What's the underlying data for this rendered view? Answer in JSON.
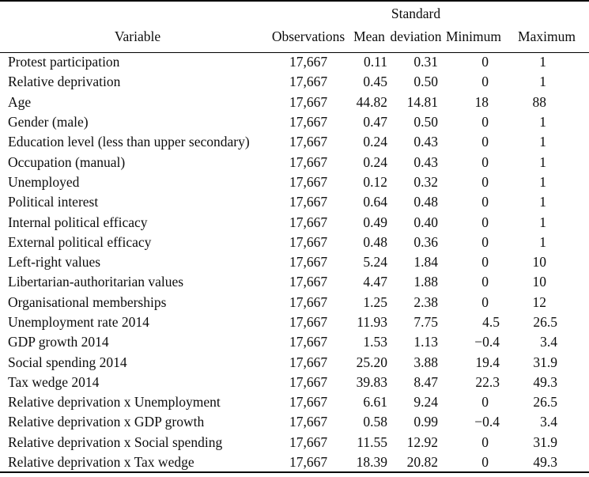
{
  "table": {
    "headers": {
      "variable": "Variable",
      "observations": "Observations",
      "mean": "Mean",
      "std_line1": "Standard",
      "std_line2": "deviation",
      "minimum": "Minimum",
      "maximum": "Maximum"
    },
    "rows": [
      {
        "variable": "Protest participation",
        "observations": "17,667",
        "mean": "0.11",
        "std": "0.31",
        "min": "0",
        "max": "1"
      },
      {
        "variable": "Relative deprivation",
        "observations": "17,667",
        "mean": "0.45",
        "std": "0.50",
        "min": "0",
        "max": "1"
      },
      {
        "variable": "Age",
        "observations": "17,667",
        "mean": "44.82",
        "std": "14.81",
        "min": "18",
        "max": "88"
      },
      {
        "variable": "Gender (male)",
        "observations": "17,667",
        "mean": "0.47",
        "std": "0.50",
        "min": "0",
        "max": "1"
      },
      {
        "variable": "Education level (less than upper secondary)",
        "observations": "17,667",
        "mean": "0.24",
        "std": "0.43",
        "min": "0",
        "max": "1"
      },
      {
        "variable": "Occupation (manual)",
        "observations": "17,667",
        "mean": "0.24",
        "std": "0.43",
        "min": "0",
        "max": "1"
      },
      {
        "variable": "Unemployed",
        "observations": "17,667",
        "mean": "0.12",
        "std": "0.32",
        "min": "0",
        "max": "1"
      },
      {
        "variable": "Political interest",
        "observations": "17,667",
        "mean": "0.64",
        "std": "0.48",
        "min": "0",
        "max": "1"
      },
      {
        "variable": "Internal political efficacy",
        "observations": "17,667",
        "mean": "0.49",
        "std": "0.40",
        "min": "0",
        "max": "1"
      },
      {
        "variable": "External political efficacy",
        "observations": "17,667",
        "mean": "0.48",
        "std": "0.36",
        "min": "0",
        "max": "1"
      },
      {
        "variable": "Left-right values",
        "observations": "17,667",
        "mean": "5.24",
        "std": "1.84",
        "min": "0",
        "max": "10"
      },
      {
        "variable": "Libertarian-authoritarian values",
        "observations": "17,667",
        "mean": "4.47",
        "std": "1.88",
        "min": "0",
        "max": "10"
      },
      {
        "variable": "Organisational memberships",
        "observations": "17,667",
        "mean": "1.25",
        "std": "2.38",
        "min": "0",
        "max": "12"
      },
      {
        "variable": "Unemployment rate 2014",
        "observations": "17,667",
        "mean": "11.93",
        "std": "7.75",
        "min": "4.5",
        "max": "26.5"
      },
      {
        "variable": "GDP growth 2014",
        "observations": "17,667",
        "mean": "1.53",
        "std": "1.13",
        "min": "−0.4",
        "max": "3.4"
      },
      {
        "variable": "Social spending 2014",
        "observations": "17,667",
        "mean": "25.20",
        "std": "3.88",
        "min": "19.4",
        "max": "31.9"
      },
      {
        "variable": "Tax wedge 2014",
        "observations": "17,667",
        "mean": "39.83",
        "std": "8.47",
        "min": "22.3",
        "max": "49.3"
      },
      {
        "variable": "Relative deprivation x Unemployment",
        "observations": "17,667",
        "mean": "6.61",
        "std": "9.24",
        "min": "0",
        "max": "26.5"
      },
      {
        "variable": "Relative deprivation x GDP growth",
        "observations": "17,667",
        "mean": "0.58",
        "std": "0.99",
        "min": "−0.4",
        "max": "3.4"
      },
      {
        "variable": "Relative deprivation x Social spending",
        "observations": "17,667",
        "mean": "11.55",
        "std": "12.92",
        "min": "0",
        "max": "31.9"
      },
      {
        "variable": "Relative deprivation x Tax wedge",
        "observations": "17,667",
        "mean": "18.39",
        "std": "20.82",
        "min": "0",
        "max": "49.3"
      }
    ]
  }
}
